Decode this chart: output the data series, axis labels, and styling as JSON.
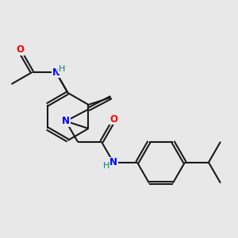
{
  "background_color": "#e8e8e8",
  "bond_color": "#1a1a1a",
  "N_color": "#0000ff",
  "O_color": "#ff0000",
  "H_color": "#008080",
  "bond_width": 1.5,
  "dbo": 0.06,
  "figsize": [
    3.0,
    3.0
  ],
  "dpi": 100,
  "xlim": [
    0,
    10
  ],
  "ylim": [
    0,
    10
  ]
}
